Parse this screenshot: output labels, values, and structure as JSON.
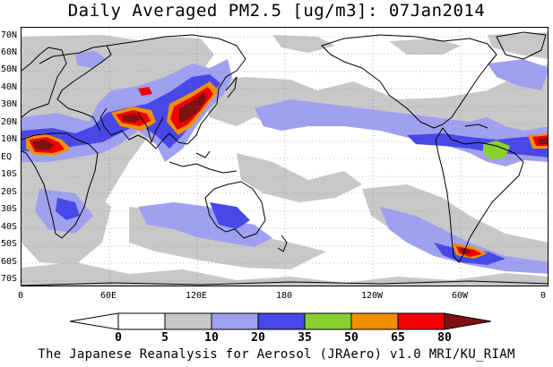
{
  "title": "Daily Averaged PM2.5 [ug/m3]: 07Jan2014",
  "footer": "The Japanese Reanalysis for Aerosol (JRAero) v1.0 MRI/KU_RIAM",
  "lat_labels": [
    "70N",
    "60N",
    "50N",
    "40N",
    "30N",
    "20N",
    "10N",
    "EQ",
    "10S",
    "20S",
    "30S",
    "40S",
    "50S",
    "60S",
    "70S"
  ],
  "lon_labels": [
    "0",
    "60E",
    "120E",
    "180",
    "120W",
    "60W",
    "0"
  ],
  "colorbar": {
    "labels": [
      "0",
      "5",
      "10",
      "20",
      "35",
      "50",
      "65",
      "80"
    ],
    "colors": [
      "#ffffff",
      "#c8c8c8",
      "#a0a0f0",
      "#4848e8",
      "#88d030",
      "#f09000",
      "#f00000",
      "#801010"
    ]
  },
  "colors": {
    "ocean": "#ffffff",
    "coast": "#000000",
    "grid": "#808080"
  }
}
